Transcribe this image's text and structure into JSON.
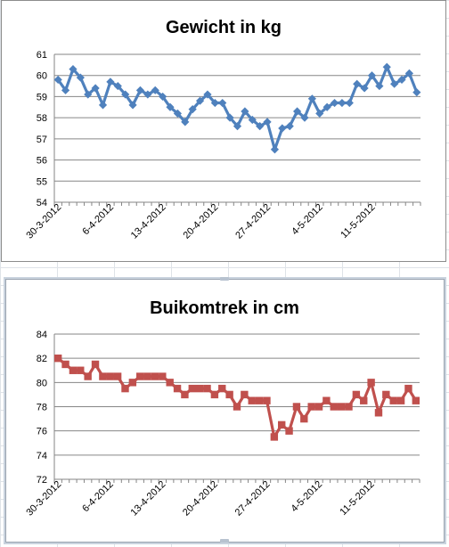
{
  "colors": {
    "series_blue": "#4f81bd",
    "series_red": "#c0504d"
  },
  "chart_data": [
    {
      "type": "line",
      "title": "Gewicht in kg",
      "marker": "diamond",
      "color": "#4f81bd",
      "ylim": [
        54,
        61
      ],
      "yticks": [
        54,
        55,
        56,
        57,
        58,
        59,
        60,
        61
      ],
      "grid": true,
      "legend": "none",
      "x_tick_labels": [
        "30-3-2012",
        "6-4-2012",
        "13-4-2012",
        "20-4-2012",
        "27-4-2012",
        "4-5-2012",
        "11-5-2012"
      ],
      "x_tick_every": 7,
      "series": [
        {
          "values": [
            59.8,
            59.3,
            60.3,
            59.9,
            59.1,
            59.4,
            58.6,
            59.7,
            59.5,
            59.1,
            58.6,
            59.3,
            59.1,
            59.3,
            59.0,
            58.5,
            58.2,
            57.8,
            58.4,
            58.8,
            59.1,
            58.7,
            58.7,
            58.0,
            57.6,
            58.3,
            57.9,
            57.6,
            57.8,
            56.5,
            57.5,
            57.6,
            58.3,
            58.0,
            58.9,
            58.2,
            58.5,
            58.7,
            58.7,
            58.7,
            59.6,
            59.4,
            60.0,
            59.5,
            60.4,
            59.6,
            59.8,
            60.1,
            59.2
          ]
        }
      ]
    },
    {
      "type": "line",
      "title": "Buikomtrek in cm",
      "marker": "square",
      "color": "#c0504d",
      "ylim": [
        72,
        84
      ],
      "yticks": [
        72,
        74,
        76,
        78,
        80,
        82,
        84
      ],
      "grid": true,
      "legend": "none",
      "x_tick_labels": [
        "30-3-2012",
        "6-4-2012",
        "13-4-2012",
        "20-4-2012",
        "27-4-2012",
        "4-5-2012",
        "11-5-2012"
      ],
      "x_tick_every": 7,
      "series": [
        {
          "values": [
            82.0,
            81.5,
            81.0,
            81.0,
            80.5,
            81.5,
            80.5,
            80.5,
            80.5,
            79.5,
            80.0,
            80.5,
            80.5,
            80.5,
            80.5,
            80.0,
            79.5,
            79.0,
            79.5,
            79.5,
            79.5,
            79.0,
            79.5,
            79.0,
            78.0,
            79.0,
            78.5,
            78.5,
            78.5,
            75.5,
            76.5,
            76.0,
            78.0,
            77.0,
            78.0,
            78.0,
            78.5,
            78.0,
            78.0,
            78.0,
            79.0,
            78.5,
            80.0,
            77.5,
            79.0,
            78.5,
            78.5,
            79.5,
            78.5
          ]
        }
      ]
    }
  ]
}
